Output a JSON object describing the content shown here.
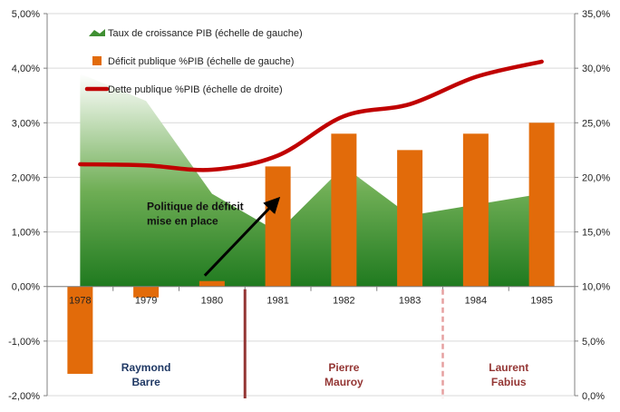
{
  "chart_data": {
    "type": "bar",
    "categories": [
      "1978",
      "1979",
      "1980",
      "1981",
      "1982",
      "1983",
      "1984",
      "1985"
    ],
    "series": [
      {
        "name": "Taux de croissance PIB (échelle de gauche)",
        "type": "area",
        "axis": "left",
        "color": "#3f8f32",
        "values": [
          3.9,
          3.4,
          1.7,
          1.0,
          2.2,
          1.3,
          1.5,
          1.7
        ]
      },
      {
        "name": "Déficit publique %PIB (échelle de gauche)",
        "type": "bar",
        "axis": "left",
        "color": "#e26b0a",
        "values": [
          -1.6,
          -0.2,
          0.1,
          2.2,
          2.8,
          2.5,
          2.8,
          3.0
        ]
      },
      {
        "name": "Dette publique %PIB (échelle de droite)",
        "type": "line",
        "axis": "right",
        "color": "#c00000",
        "values": [
          21.2,
          21.1,
          20.7,
          22.0,
          25.6,
          26.7,
          29.2,
          30.6
        ]
      }
    ],
    "y_left": {
      "min": -2,
      "max": 5,
      "step": 1,
      "ticks": [
        "-2,00%",
        "-1,00%",
        "0,00%",
        "1,00%",
        "2,00%",
        "3,00%",
        "4,00%",
        "5,00%"
      ]
    },
    "y_right": {
      "min": 0,
      "max": 35,
      "step": 5,
      "ticks": [
        "0,0%",
        "5,0%",
        "10,0%",
        "15,0%",
        "20,0%",
        "25,0%",
        "30,0%",
        "35,0%"
      ]
    },
    "grid": true,
    "legend_position": "top-left",
    "annotations": [
      {
        "text_lines": [
          "Politique de déficit",
          "mise en place"
        ],
        "arrow_from": [
          "1980",
          0.2
        ],
        "arrow_to": [
          "1981",
          1.6
        ]
      }
    ],
    "periods": [
      {
        "lines": [
          "Raymond",
          "Barre"
        ],
        "color": "#1f3864",
        "from": "1978",
        "to": "1980"
      },
      {
        "lines": [
          "Pierre",
          "Mauroy"
        ],
        "color": "#943634",
        "from": "1981",
        "to": "1983",
        "divider_before": "solid"
      },
      {
        "lines": [
          "Laurent",
          "Fabius"
        ],
        "color": "#943634",
        "from": "1984",
        "to": "1985",
        "divider_before": "dashed"
      }
    ]
  }
}
